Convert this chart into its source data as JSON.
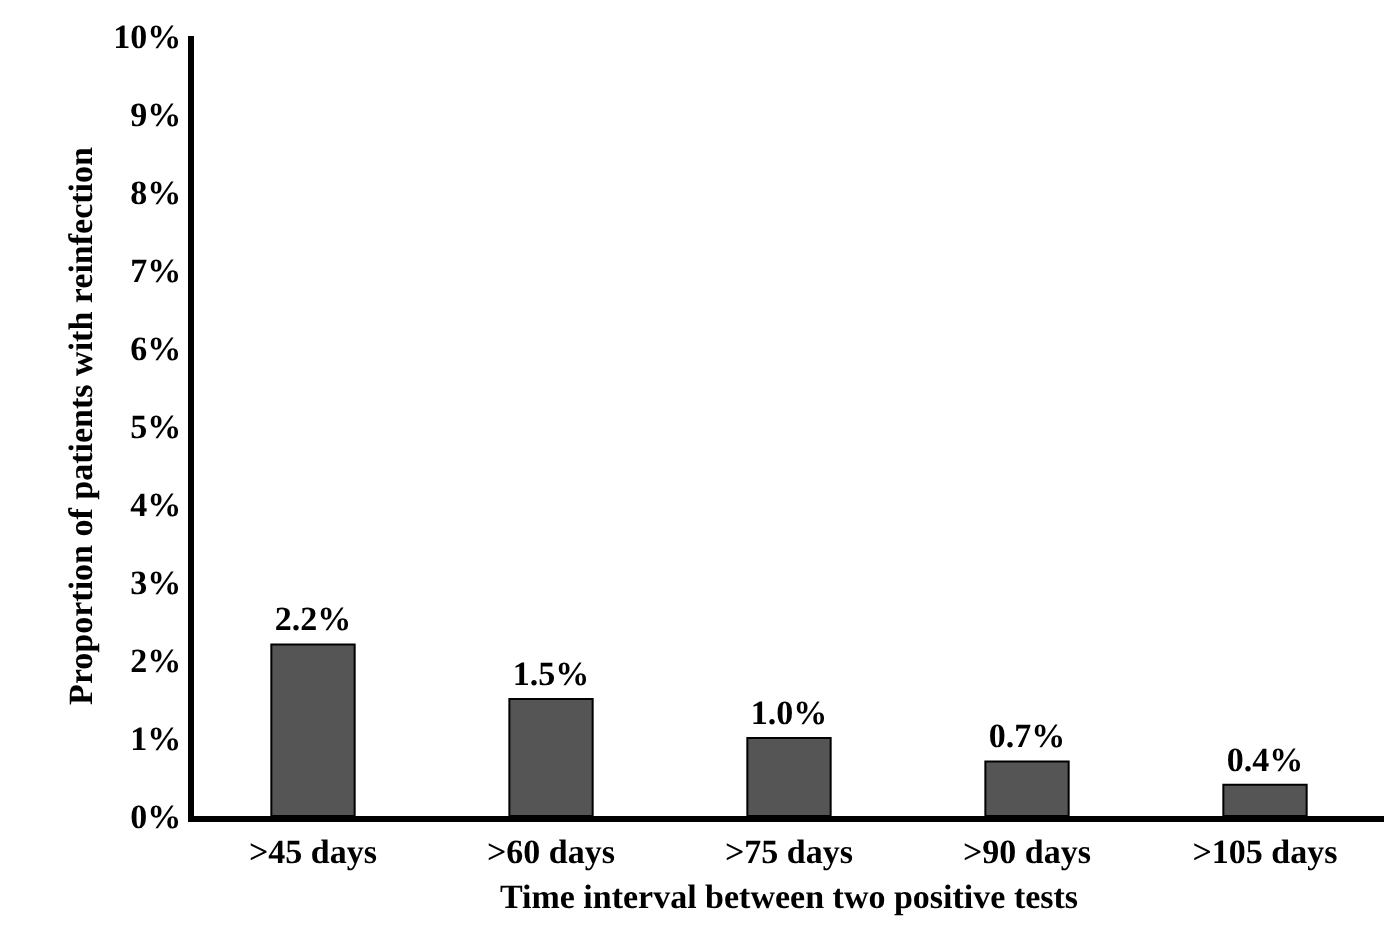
{
  "chart_data": {
    "type": "bar",
    "xlabel": "Time interval between two positive tests",
    "ylabel": "Proportion of patients with reinfection",
    "categories": [
      ">45 days",
      ">60 days",
      ">75 days",
      ">90 days",
      ">105 days"
    ],
    "values": [
      2.2,
      1.5,
      1.0,
      0.7,
      0.4
    ],
    "value_labels": [
      "2.2%",
      "1.5%",
      "1.0%",
      "0.7%",
      "0.4%"
    ],
    "color": "#555555",
    "ylim": [
      0,
      10
    ],
    "yticks": [
      {
        "value": 0,
        "label": "0%"
      },
      {
        "value": 1,
        "label": "1%"
      },
      {
        "value": 2,
        "label": "2%"
      },
      {
        "value": 3,
        "label": "3%"
      },
      {
        "value": 4,
        "label": "4%"
      },
      {
        "value": 5,
        "label": "5%"
      },
      {
        "value": 6,
        "label": "6%"
      },
      {
        "value": 7,
        "label": "7%"
      },
      {
        "value": 8,
        "label": "8%"
      },
      {
        "value": 9,
        "label": "9%"
      },
      {
        "value": 10,
        "label": "10%"
      }
    ],
    "grid": false
  }
}
